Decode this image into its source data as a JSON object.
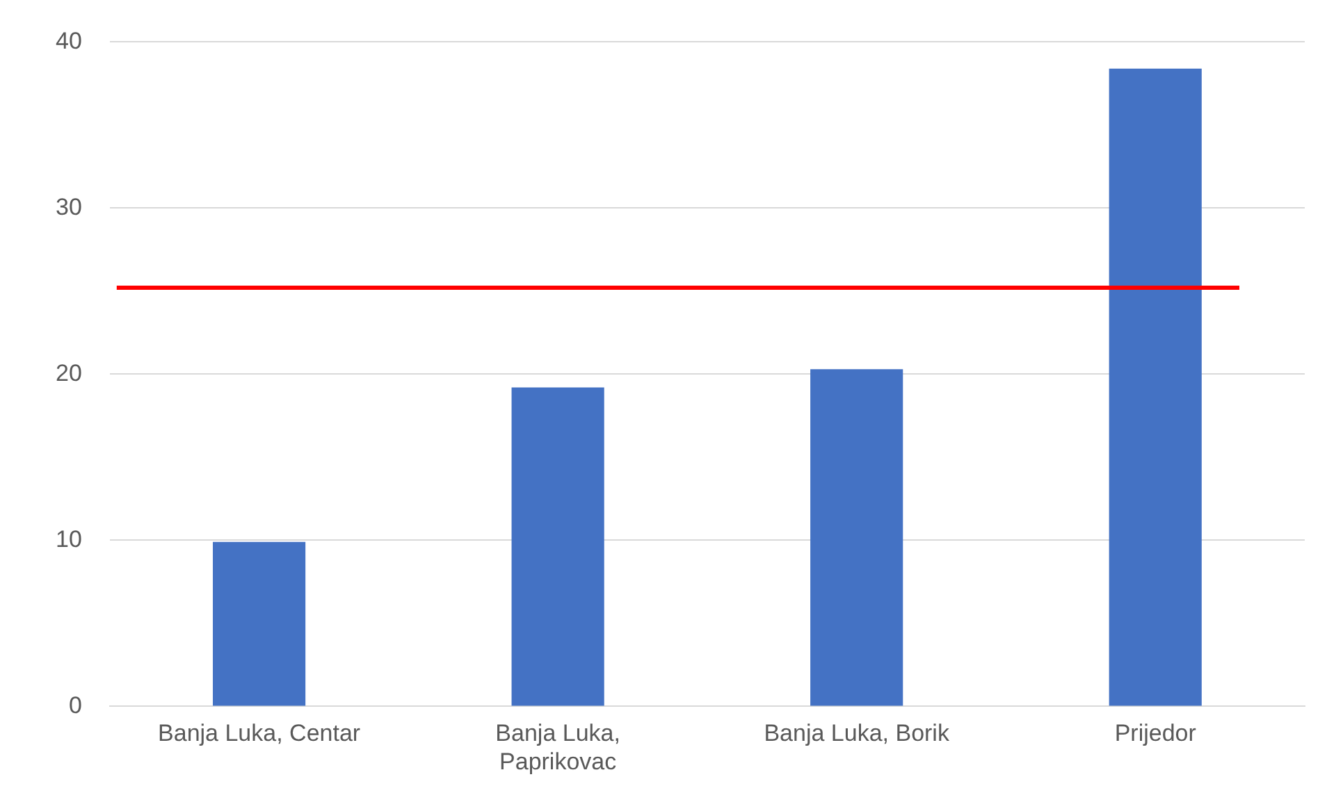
{
  "chart_data": {
    "type": "bar",
    "categories": [
      "Banja Luka, Centar",
      "Banja Luka, Paprikovac",
      "Banja Luka, Borik",
      "Prijedor"
    ],
    "values": [
      9.9,
      19.2,
      20.3,
      38.4
    ],
    "color": "#4472c4",
    "ylim": [
      0,
      40
    ],
    "yticks": [
      0,
      10,
      20,
      30,
      40
    ],
    "grid": "y",
    "legend": false,
    "ref_lines": [
      {
        "axis": "y",
        "value": 25.2,
        "color": "#ff0000"
      }
    ]
  }
}
